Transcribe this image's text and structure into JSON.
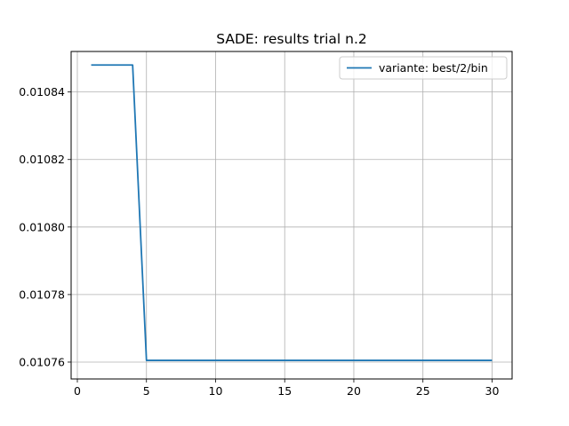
{
  "chart_data": {
    "type": "line",
    "title": "SADE: results trial n.2",
    "xlabel": "",
    "ylabel": "",
    "xlim": [
      -0.45,
      31.45
    ],
    "ylim": [
      0.010755,
      0.010852
    ],
    "xticks": [
      0,
      5,
      10,
      15,
      20,
      25,
      30
    ],
    "xtick_labels": [
      "0",
      "5",
      "10",
      "15",
      "20",
      "25",
      "30"
    ],
    "yticks": [
      0.01076,
      0.01078,
      0.0108,
      0.01082,
      0.01084
    ],
    "ytick_labels": [
      "0.01076",
      "0.01078",
      "0.01080",
      "0.01082",
      "0.01084"
    ],
    "grid": true,
    "legend_position": "upper right",
    "series": [
      {
        "name": "variante: best/2/bin",
        "color": "#1f77b4",
        "x": [
          1,
          2,
          3,
          4,
          5,
          6,
          7,
          8,
          9,
          10,
          11,
          12,
          13,
          14,
          15,
          16,
          17,
          18,
          19,
          20,
          21,
          22,
          23,
          24,
          25,
          26,
          27,
          28,
          29,
          30
        ],
        "y": [
          0.010848,
          0.010848,
          0.010848,
          0.010848,
          0.0107605,
          0.0107605,
          0.0107605,
          0.0107605,
          0.0107605,
          0.0107605,
          0.0107605,
          0.0107605,
          0.0107605,
          0.0107605,
          0.0107605,
          0.0107605,
          0.0107605,
          0.0107605,
          0.0107605,
          0.0107605,
          0.0107605,
          0.0107605,
          0.0107605,
          0.0107605,
          0.0107605,
          0.0107605,
          0.0107605,
          0.0107605,
          0.0107605,
          0.0107605
        ]
      }
    ]
  }
}
